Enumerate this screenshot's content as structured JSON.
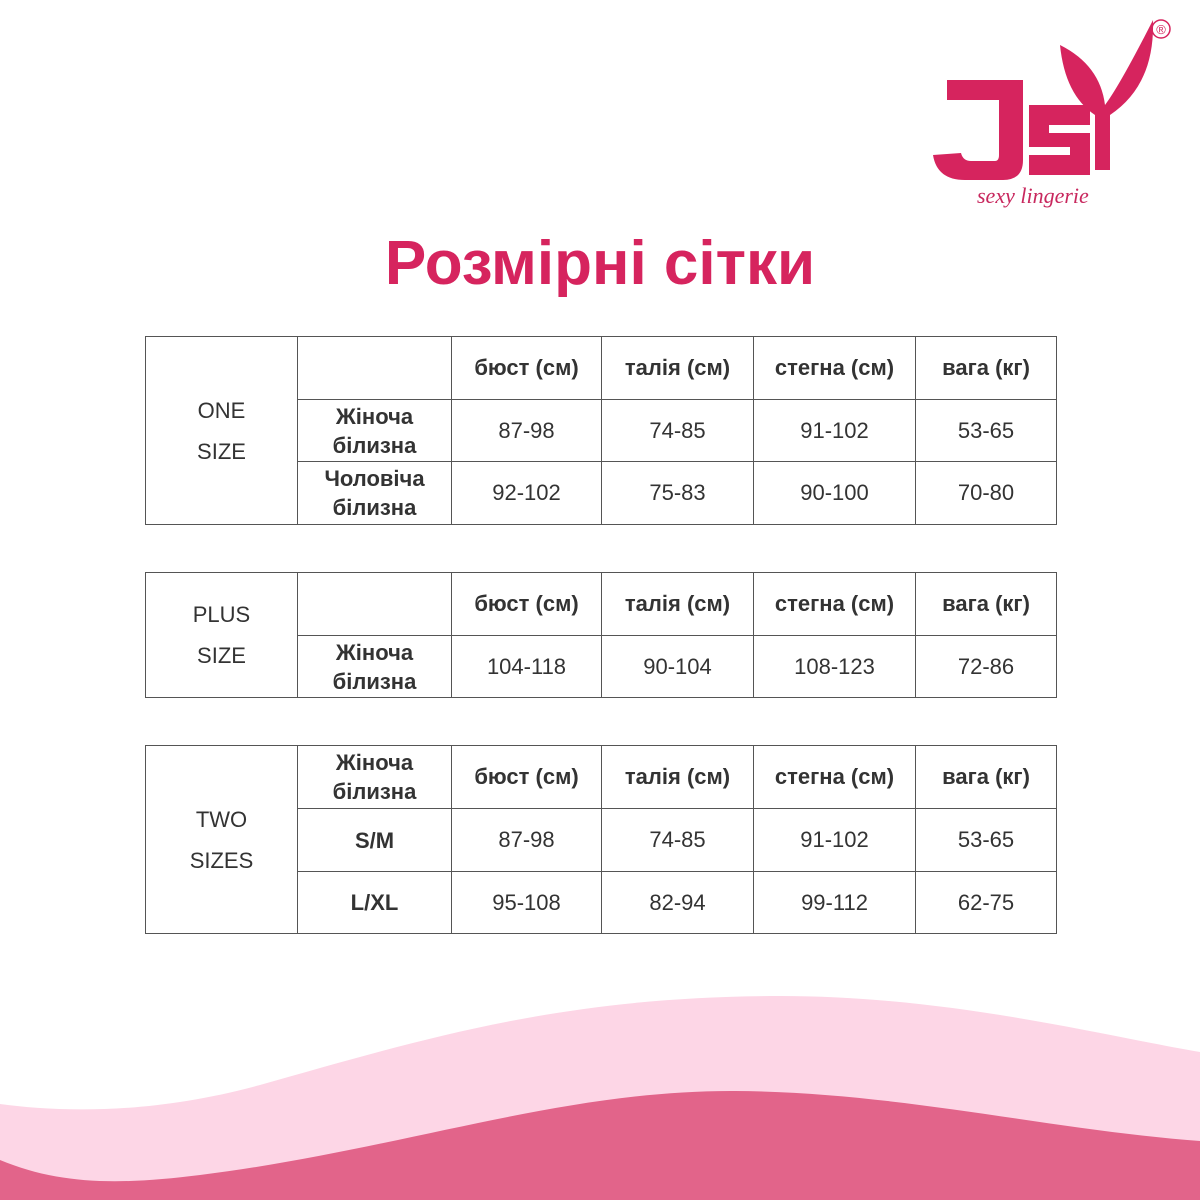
{
  "brand": {
    "logo_text": "JSY",
    "tagline": "sexy lingerie",
    "registered": "®",
    "color": "#d6245e"
  },
  "title": "Розмірні сітки",
  "columns": [
    "бюст (см)",
    "талія (см)",
    "стегна (см)",
    "вага (кг)"
  ],
  "tables": [
    {
      "group": "ONE SIZE",
      "corner": "",
      "rows": [
        {
          "label": "Жіноча білизна",
          "values": [
            "87-98",
            "74-85",
            "91-102",
            "53-65"
          ]
        },
        {
          "label": "Чоловіча білизна",
          "values": [
            "92-102",
            "75-83",
            "90-100",
            "70-80"
          ]
        }
      ]
    },
    {
      "group": "PLUS SIZE",
      "corner": "",
      "rows": [
        {
          "label": "Жіноча білизна",
          "values": [
            "104-118",
            "90-104",
            "108-123",
            "72-86"
          ]
        }
      ]
    },
    {
      "group": "TWO SIZES",
      "corner": "Жіноча білизна",
      "rows": [
        {
          "label": "S/M",
          "values": [
            "87-98",
            "74-85",
            "91-102",
            "53-65"
          ]
        },
        {
          "label": "L/XL",
          "values": [
            "95-108",
            "82-94",
            "99-112",
            "62-75"
          ]
        }
      ]
    }
  ],
  "colors": {
    "accent": "#d42a64",
    "wave_light": "#fdd6e6",
    "wave_dark": "#e2648a"
  }
}
